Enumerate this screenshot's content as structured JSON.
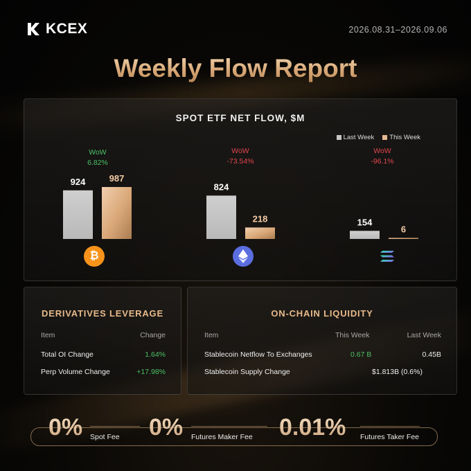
{
  "header": {
    "brand": "KCEX",
    "date_range": "2026.08.31–2026.09.06",
    "title": "Weekly Flow Report"
  },
  "chart_data": {
    "type": "bar",
    "title": "SPOT ETF NET FLOW, $M",
    "categories": [
      "BTC",
      "ETH",
      "SOL"
    ],
    "series": [
      {
        "name": "Last Week",
        "values": [
          924,
          824,
          154
        ],
        "color": "#c6c6c6"
      },
      {
        "name": "This Week",
        "values": [
          987,
          218,
          6
        ],
        "color": "#e7b990"
      }
    ],
    "wow": [
      {
        "label": "WoW",
        "value": "6.82%",
        "direction": "up"
      },
      {
        "label": "WoW",
        "value": "-73.54%",
        "direction": "down"
      },
      {
        "label": "WoW",
        "value": "-96.1%",
        "direction": "down"
      }
    ],
    "legend_position": "top-right",
    "coin_icons": [
      "bitcoin-icon",
      "ethereum-icon",
      "solana-icon"
    ]
  },
  "derivatives": {
    "title": "DERIVATIVES LEVERAGE",
    "headers": {
      "item": "Item",
      "change": "Change"
    },
    "rows": [
      {
        "item": "Total OI Change",
        "change": "1.64%"
      },
      {
        "item": "Perp Volume Change",
        "change": "+17.98%"
      }
    ]
  },
  "onchain": {
    "title": "ON-CHAIN LIQUIDITY",
    "headers": {
      "item": "Item",
      "this_week": "This Week",
      "last_week": "Last Week"
    },
    "rows": [
      {
        "item": "Stablecoin Netflow To Exchanges",
        "this_week": "0.67 B",
        "last_week": "0.45B"
      },
      {
        "item": "Stablecoin Supply Change",
        "combined": "$1.813B (0.6%)"
      }
    ]
  },
  "fees": [
    {
      "value": "0%",
      "label": "Spot Fee"
    },
    {
      "value": "0%",
      "label": "Futures Maker Fee"
    },
    {
      "value": "0.01%",
      "label": "Futures Taker Fee"
    }
  ]
}
